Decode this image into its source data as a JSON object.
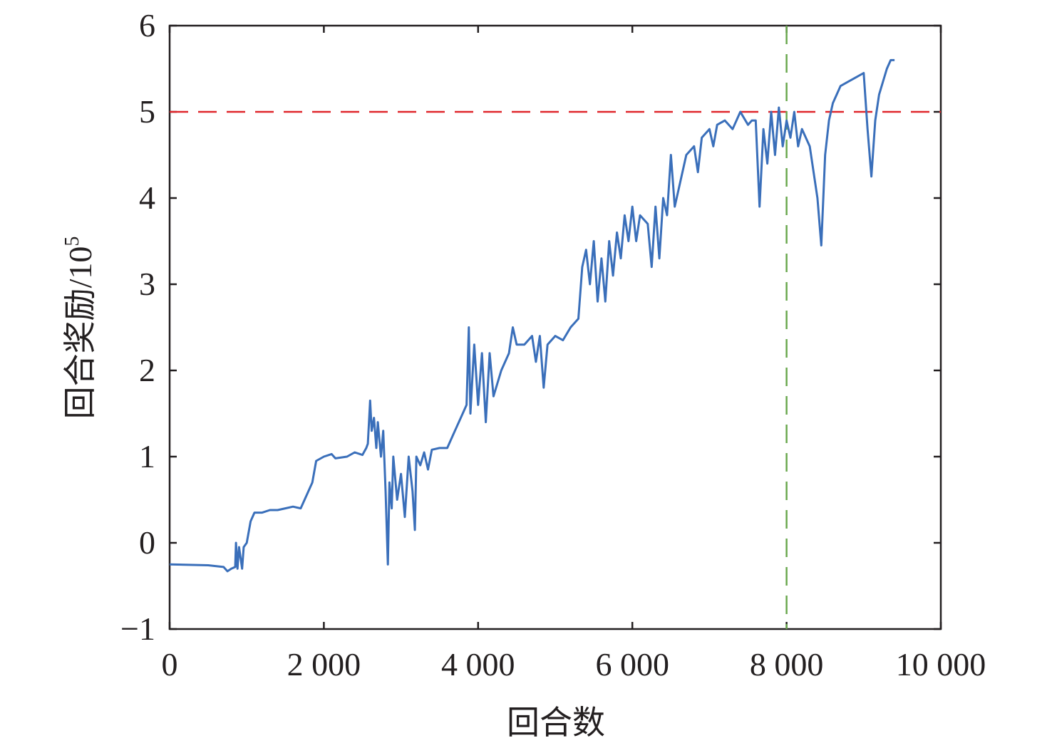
{
  "chart_data": {
    "type": "line",
    "title": "",
    "xlabel": "回合数",
    "ylabel": "回合奖励/10",
    "ylabel_superscript": "5",
    "xlim": [
      0,
      10000
    ],
    "ylim": [
      -1,
      6
    ],
    "xticks": [
      0,
      2000,
      4000,
      6000,
      8000,
      10000
    ],
    "xtick_labels": [
      "0",
      "2 000",
      "4 000",
      "6 000",
      "8 000",
      "10 000"
    ],
    "yticks": [
      -1,
      0,
      1,
      2,
      3,
      4,
      5,
      6
    ],
    "ytick_labels": [
      "−1",
      "0",
      "1",
      "2",
      "3",
      "4",
      "5",
      "6"
    ],
    "grid": false,
    "colors": {
      "series": "#3a6fba",
      "threshold": "#e0262b",
      "marker": "#6aa84f",
      "axis": "#231f20"
    },
    "reference_lines": [
      {
        "orientation": "horizontal",
        "value": 5,
        "style": "dashed",
        "color": "#e0262b"
      },
      {
        "orientation": "vertical",
        "value": 8000,
        "style": "dashed",
        "color": "#6aa84f"
      }
    ],
    "series": [
      {
        "x": [
          0,
          500,
          700,
          750,
          800,
          850,
          860,
          880,
          900,
          940,
          960,
          1000,
          1050,
          1100,
          1200,
          1300,
          1400,
          1500,
          1600,
          1700,
          1800,
          1850,
          1900,
          2000,
          2100,
          2150,
          2300,
          2400,
          2500,
          2550,
          2570,
          2600,
          2620,
          2650,
          2680,
          2700,
          2740,
          2770,
          2800,
          2830,
          2850,
          2880,
          2900,
          2950,
          3000,
          3050,
          3100,
          3150,
          3180,
          3200,
          3250,
          3300,
          3350,
          3400,
          3500,
          3600,
          3700,
          3800,
          3850,
          3880,
          3900,
          3950,
          4000,
          4050,
          4100,
          4150,
          4200,
          4300,
          4400,
          4450,
          4500,
          4600,
          4700,
          4750,
          4800,
          4850,
          4900,
          5000,
          5100,
          5200,
          5300,
          5350,
          5400,
          5450,
          5500,
          5550,
          5600,
          5650,
          5700,
          5750,
          5800,
          5850,
          5900,
          5950,
          6000,
          6050,
          6100,
          6200,
          6250,
          6300,
          6350,
          6400,
          6450,
          6500,
          6550,
          6600,
          6700,
          6800,
          6850,
          6900,
          7000,
          7050,
          7100,
          7200,
          7300,
          7400,
          7500,
          7550,
          7600,
          7650,
          7700,
          7750,
          7800,
          7850,
          7900,
          7950,
          8000,
          8050,
          8100,
          8150,
          8200,
          8300,
          8350,
          8400,
          8450,
          8500,
          8550,
          8600,
          8700,
          8800,
          8900,
          9000,
          9050,
          9100,
          9150,
          9200,
          9300,
          9350,
          9400
        ],
        "y": [
          -0.25,
          -0.26,
          -0.28,
          -0.33,
          -0.3,
          -0.28,
          0.0,
          -0.3,
          -0.05,
          -0.3,
          -0.05,
          0.0,
          0.25,
          0.35,
          0.35,
          0.38,
          0.38,
          0.4,
          0.42,
          0.4,
          0.6,
          0.7,
          0.95,
          1.0,
          1.03,
          0.98,
          1.0,
          1.05,
          1.02,
          1.1,
          1.15,
          1.65,
          1.3,
          1.45,
          1.1,
          1.4,
          1.0,
          1.3,
          0.6,
          -0.25,
          0.7,
          0.4,
          1.0,
          0.5,
          0.8,
          0.3,
          1.0,
          0.6,
          0.15,
          1.0,
          0.9,
          1.05,
          0.85,
          1.08,
          1.1,
          1.1,
          1.3,
          1.5,
          1.6,
          2.5,
          1.5,
          2.3,
          1.6,
          2.2,
          1.4,
          2.2,
          1.7,
          2.0,
          2.2,
          2.5,
          2.3,
          2.3,
          2.4,
          2.1,
          2.4,
          1.8,
          2.3,
          2.4,
          2.35,
          2.5,
          2.6,
          3.2,
          3.4,
          3.0,
          3.5,
          2.8,
          3.3,
          2.8,
          3.5,
          3.1,
          3.6,
          3.3,
          3.8,
          3.5,
          3.9,
          3.5,
          3.8,
          3.7,
          3.2,
          3.9,
          3.3,
          4.0,
          3.8,
          4.5,
          3.9,
          4.1,
          4.5,
          4.6,
          4.3,
          4.7,
          4.8,
          4.6,
          4.85,
          4.9,
          4.8,
          5.0,
          4.85,
          4.9,
          4.9,
          3.9,
          4.8,
          4.4,
          5.0,
          4.5,
          5.05,
          4.6,
          4.9,
          4.7,
          5.0,
          4.6,
          4.8,
          4.6,
          4.3,
          4.0,
          3.45,
          4.5,
          4.9,
          5.1,
          5.3,
          5.35,
          5.4,
          5.45,
          4.8,
          4.25,
          4.9,
          5.2,
          5.5,
          5.6,
          5.6
        ]
      }
    ]
  }
}
